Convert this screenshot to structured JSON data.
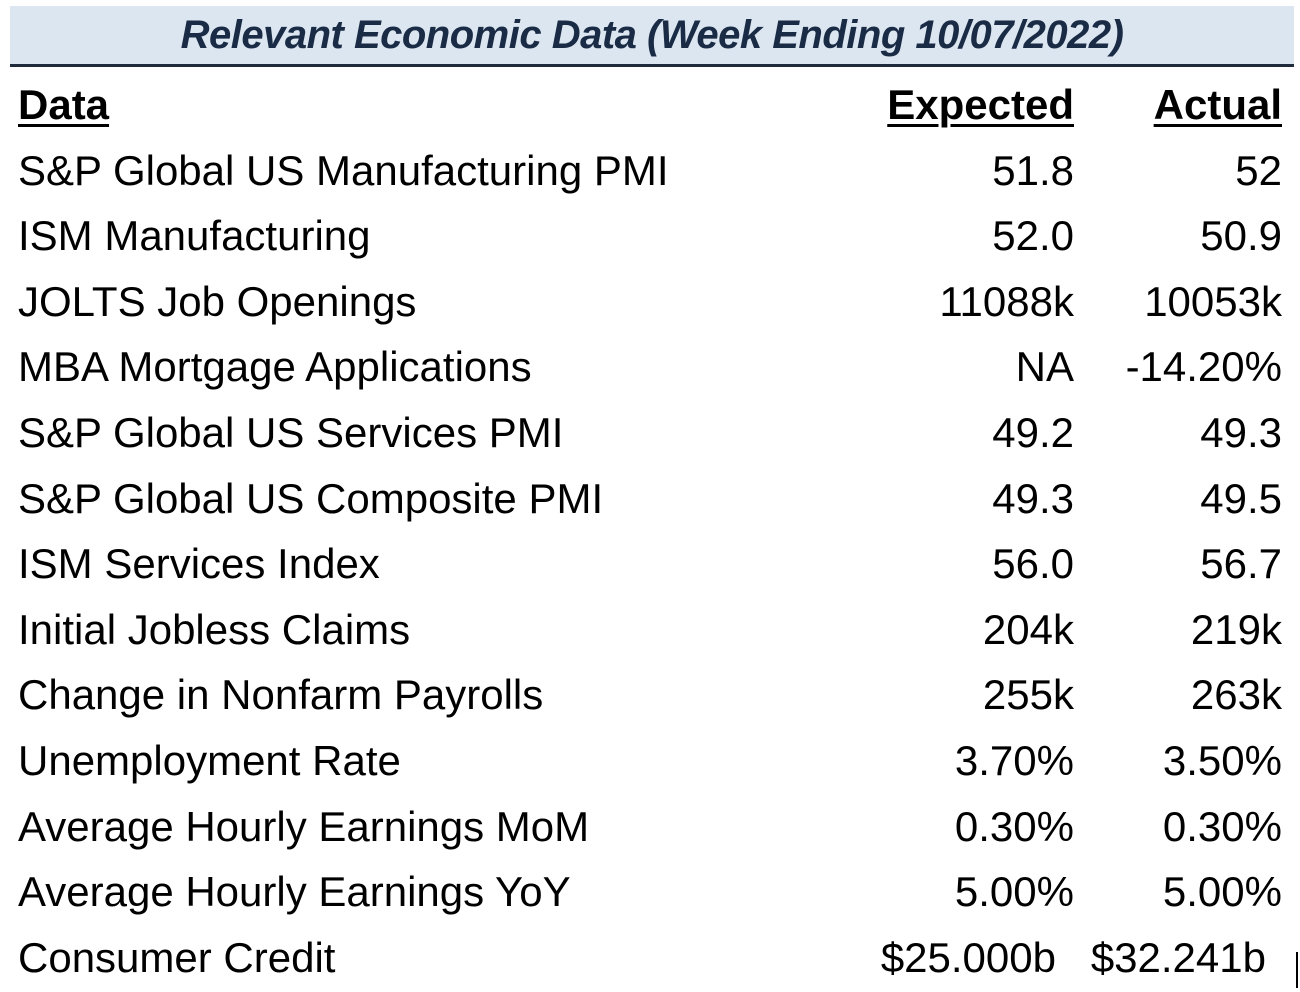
{
  "title": "Relevant Economic Data (Week Ending 10/07/2022)",
  "headers": {
    "data": "Data",
    "expected": "Expected",
    "actual": "Actual"
  },
  "rows": [
    {
      "name": "S&P Global US Manufacturing PMI",
      "expected": "51.8",
      "actual": "52"
    },
    {
      "name": "ISM Manufacturing",
      "expected": "52.0",
      "actual": "50.9"
    },
    {
      "name": "JOLTS Job Openings",
      "expected": "11088k",
      "actual": "10053k"
    },
    {
      "name": "MBA Mortgage Applications",
      "expected": "NA",
      "actual": "-14.20%"
    },
    {
      "name": "S&P Global US Services PMI",
      "expected": "49.2",
      "actual": "49.3"
    },
    {
      "name": "S&P Global US Composite PMI",
      "expected": "49.3",
      "actual": "49.5"
    },
    {
      "name": "ISM Services Index",
      "expected": "56.0",
      "actual": "56.7"
    },
    {
      "name": "Initial Jobless Claims",
      "expected": "204k",
      "actual": "219k"
    },
    {
      "name": "Change in Nonfarm Payrolls",
      "expected": "255k",
      "actual": "263k"
    },
    {
      "name": "Unemployment Rate",
      "expected": "3.70%",
      "actual": "3.50%"
    },
    {
      "name": "Average Hourly Earnings MoM",
      "expected": "0.30%",
      "actual": "0.30%"
    },
    {
      "name": "Average Hourly Earnings YoY",
      "expected": "5.00%",
      "actual": "5.00%"
    },
    {
      "name": "Consumer Credit",
      "expected": "$25.000b",
      "actual": "$32.241b"
    }
  ],
  "colors": {
    "title_background": "#dce6f1",
    "title_text": "#1a2b45",
    "title_border": "#1f2a3a"
  }
}
